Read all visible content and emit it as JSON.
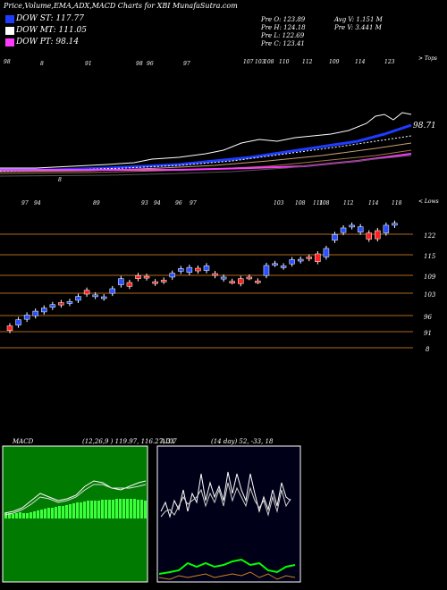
{
  "header": {
    "title": "Price,Volume,EMA,ADX,MACD Charts for XBI MunafaSutra.com",
    "legend": [
      {
        "label": "DOW ST: 117.77",
        "color": "#1e3cff"
      },
      {
        "label": "DOW MT: 111.05",
        "color": "#ffffff"
      },
      {
        "label": "DOW PT: 98.14",
        "color": "#ff3aff"
      }
    ],
    "ohlc": {
      "pre_o": "Pre   O: 123.89",
      "pre_h": "Pre   H: 124.18",
      "pre_l": "Pre   L: 122.69",
      "pre_c": "Pre   C: 123.41",
      "avg_v": "Avg V: 1.151 M",
      "pre_v": "Pre   V: 3.441 M"
    }
  },
  "ema_panel": {
    "top_numbers": [
      "98",
      "8",
      "91",
      "98",
      "96",
      "97",
      "107",
      "103",
      "108",
      "110",
      "112",
      "109",
      "114",
      "123"
    ],
    "top_label": "> Tops",
    "last_value": "98.71",
    "min_marker": "8"
  },
  "candle_panel": {
    "top_numbers": [
      "97",
      "94",
      "89",
      "93",
      "94",
      "96",
      "97",
      "103",
      "108",
      "111",
      "108",
      "112",
      "114",
      "118"
    ],
    "top_label": "< Lows",
    "price_labels": [
      "122",
      "115",
      "109",
      "103",
      "96",
      "91",
      "8"
    ]
  },
  "macd_panel": {
    "label": "MACD",
    "values": "(12,26,9 ) 119.97,  116.27, 3.7"
  },
  "adx_panel": {
    "label": "ADX",
    "values": "(14  day) 52,  -33,  18"
  },
  "chart_data": {
    "type": "candlestick",
    "price_levels": [
      122,
      115,
      109,
      103,
      96,
      91
    ],
    "candles": [
      {
        "open": 96.2,
        "close": 97.4,
        "color": "red"
      },
      {
        "open": 97.6,
        "close": 99.0,
        "color": "blue"
      },
      {
        "open": 99.1,
        "close": 100.2,
        "color": "blue"
      },
      {
        "open": 100.0,
        "close": 101.2,
        "color": "blue"
      },
      {
        "open": 101.0,
        "close": 102.0,
        "color": "blue"
      },
      {
        "open": 102.2,
        "close": 102.9,
        "color": "blue"
      },
      {
        "open": 102.8,
        "close": 103.4,
        "color": "red"
      },
      {
        "open": 103.2,
        "close": 103.7,
        "color": "blue"
      },
      {
        "open": 104.0,
        "close": 105.0,
        "color": "blue"
      },
      {
        "open": 105.6,
        "close": 106.6,
        "color": "red"
      },
      {
        "open": 105.0,
        "close": 105.4,
        "color": "blue"
      },
      {
        "open": 104.6,
        "close": 104.9,
        "color": "blue"
      },
      {
        "open": 105.8,
        "close": 107.0,
        "color": "blue"
      },
      {
        "open": 108.0,
        "close": 109.6,
        "color": "blue"
      },
      {
        "open": 107.6,
        "close": 108.6,
        "color": "red"
      },
      {
        "open": 109.6,
        "close": 110.4,
        "color": "red"
      },
      {
        "open": 109.8,
        "close": 110.2,
        "color": "red"
      },
      {
        "open": 108.4,
        "close": 108.8,
        "color": "red"
      },
      {
        "open": 108.9,
        "close": 109.2,
        "color": "red"
      },
      {
        "open": 110.0,
        "close": 111.0,
        "color": "blue"
      },
      {
        "open": 111.5,
        "close": 112.2,
        "color": "blue"
      },
      {
        "open": 111.2,
        "close": 112.5,
        "color": "blue"
      },
      {
        "open": 112.3,
        "close": 111.6,
        "color": "red"
      },
      {
        "open": 111.7,
        "close": 112.9,
        "color": "blue"
      },
      {
        "open": 110.4,
        "close": 110.9,
        "color": "red"
      },
      {
        "open": 109.5,
        "close": 110.0,
        "color": "blue"
      },
      {
        "open": 108.9,
        "close": 108.8,
        "color": "red"
      },
      {
        "open": 108.3,
        "close": 109.6,
        "color": "red"
      },
      {
        "open": 109.9,
        "close": 110.0,
        "color": "red"
      },
      {
        "open": 108.9,
        "close": 109.0,
        "color": "red"
      },
      {
        "open": 110.4,
        "close": 113.0,
        "color": "blue"
      },
      {
        "open": 113.3,
        "close": 113.5,
        "color": "blue"
      },
      {
        "open": 112.6,
        "close": 112.9,
        "color": "blue"
      },
      {
        "open": 113.4,
        "close": 114.5,
        "color": "blue"
      },
      {
        "open": 114.2,
        "close": 114.6,
        "color": "blue"
      },
      {
        "open": 114.8,
        "close": 115.2,
        "color": "red"
      },
      {
        "open": 114.0,
        "close": 116.0,
        "color": "red"
      },
      {
        "open": 115.2,
        "close": 117.4,
        "color": "blue"
      },
      {
        "open": 119.5,
        "close": 121.0,
        "color": "blue"
      },
      {
        "open": 121.5,
        "close": 122.7,
        "color": "blue"
      },
      {
        "open": 123.0,
        "close": 123.4,
        "color": "blue"
      },
      {
        "open": 121.6,
        "close": 123.0,
        "color": "blue"
      },
      {
        "open": 119.8,
        "close": 121.4,
        "color": "red"
      },
      {
        "open": 119.9,
        "close": 122.0,
        "color": "red"
      },
      {
        "open": 121.4,
        "close": 123.4,
        "color": "blue"
      },
      {
        "open": 123.9,
        "close": 123.4,
        "color": "blue"
      }
    ]
  }
}
